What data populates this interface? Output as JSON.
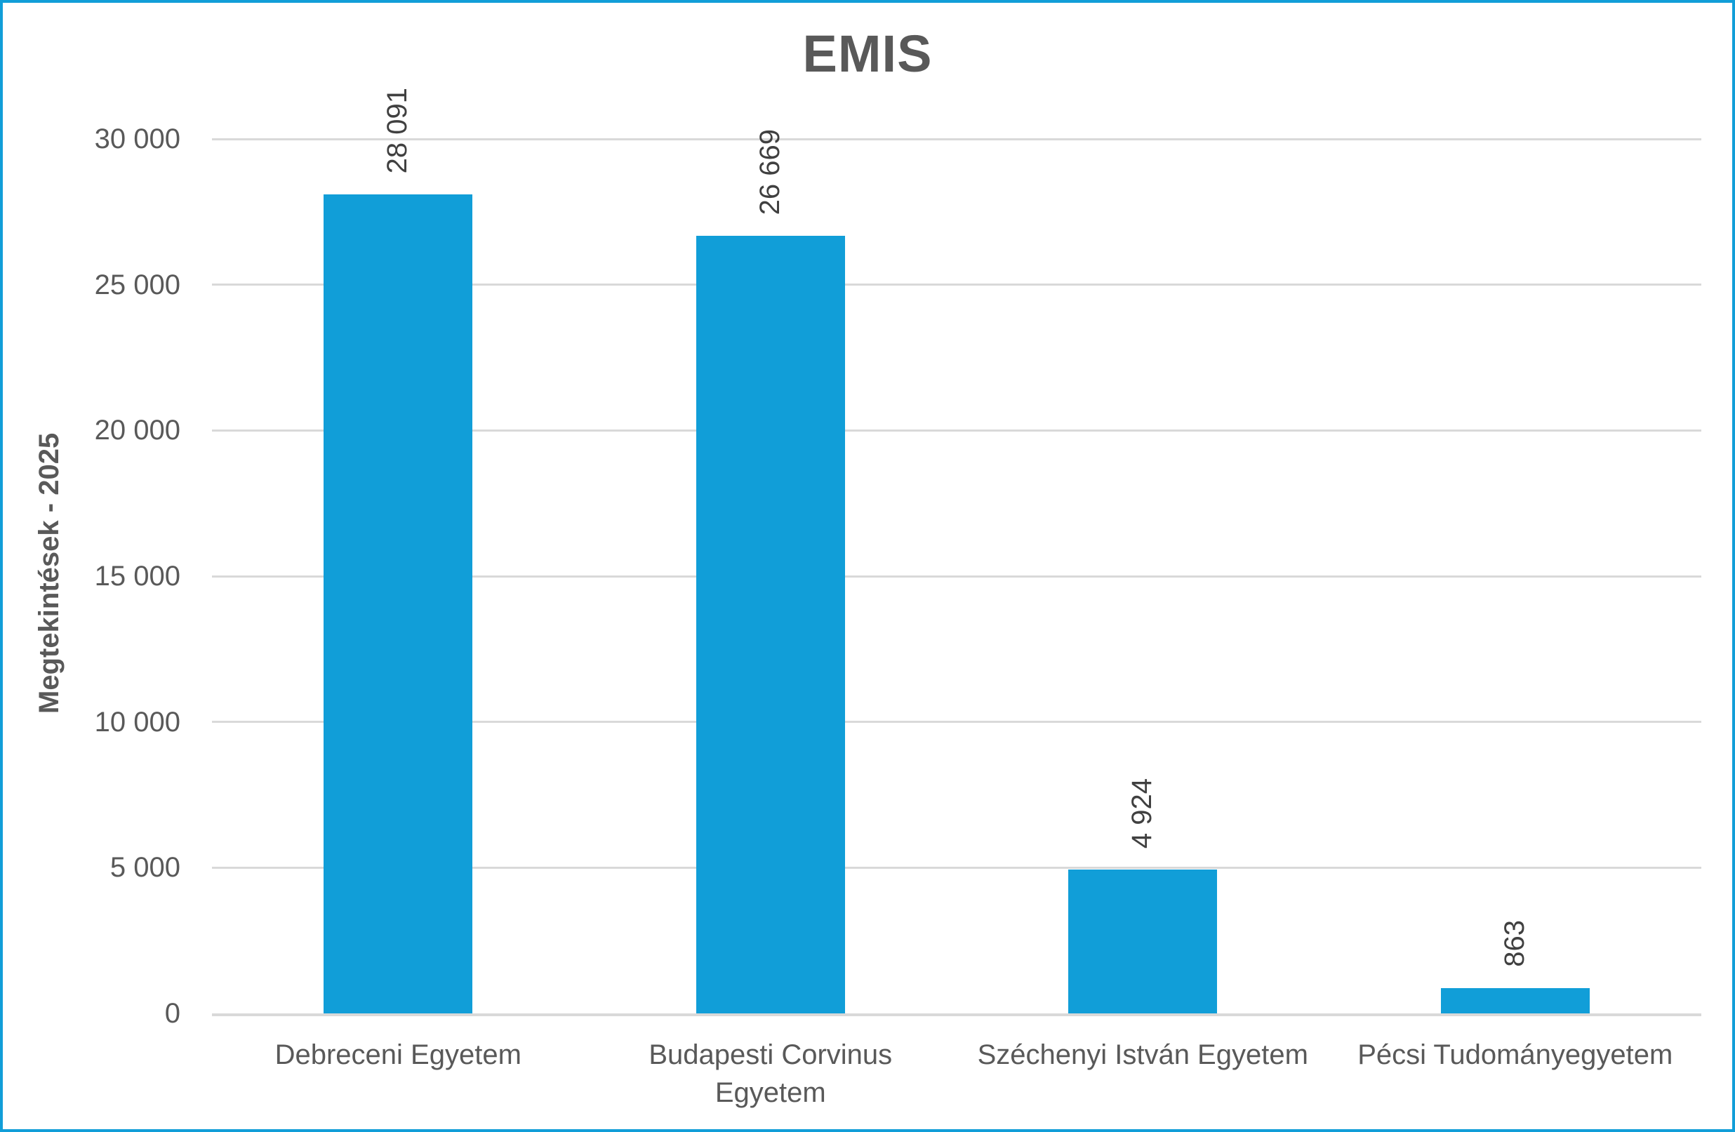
{
  "window": {
    "background": "#FFFFFF",
    "frame_border_color": "#119ED8"
  },
  "chart_data": {
    "type": "bar",
    "title": "EMIS",
    "xlabel": "",
    "ylabel": "Megtekintések - 2025",
    "categories": [
      "Debreceni Egyetem",
      "Budapesti Corvinus Egyetem",
      "Széchenyi István Egyetem",
      "Pécsi Tudományegyetem"
    ],
    "values": [
      28091,
      26669,
      4924,
      863
    ],
    "value_labels": [
      "28 091",
      "26 669",
      "4 924",
      "863"
    ],
    "ylim": [
      0,
      30000
    ],
    "yticks": {
      "values": [
        0,
        5000,
        10000,
        15000,
        20000,
        25000,
        30000
      ],
      "labels": [
        "0",
        "5 000",
        "10 000",
        "15 000",
        "20 000",
        "25 000",
        "30 000"
      ]
    },
    "grid": true,
    "legend": "none",
    "bar_color": "#119ED8",
    "gridline_color": "#D9D9D9",
    "axis_text_color": "#595959",
    "value_label_color": "#404040",
    "title_color": "#595959"
  }
}
